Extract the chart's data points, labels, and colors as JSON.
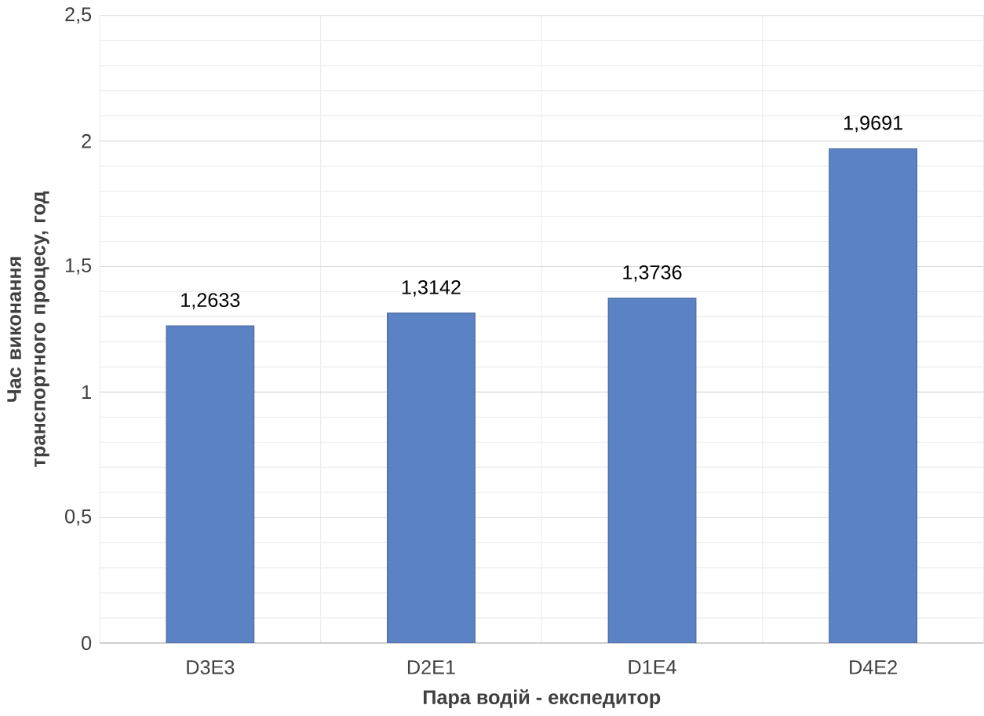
{
  "chart_data": {
    "type": "bar",
    "xlabel": "Пара водій - експедитор",
    "ylabel": "Час виконання транспортного процесу, год",
    "categories": [
      "D3E3",
      "D2E1",
      "D1E4",
      "D4E2"
    ],
    "values": [
      1.2633,
      1.3142,
      1.3736,
      1.9691
    ],
    "value_labels": [
      "1,2633",
      "1,3142",
      "1,3736",
      "1,9691"
    ],
    "color": "#5b82c4",
    "ylim": [
      0,
      2.5
    ],
    "yticks": [
      0,
      {
        "value": 0.5,
        "label": "0,5"
      },
      1,
      {
        "value": 1.5,
        "label": "1,5"
      },
      2,
      {
        "value": 2.5,
        "label": "2,5"
      }
    ],
    "grid": true
  }
}
